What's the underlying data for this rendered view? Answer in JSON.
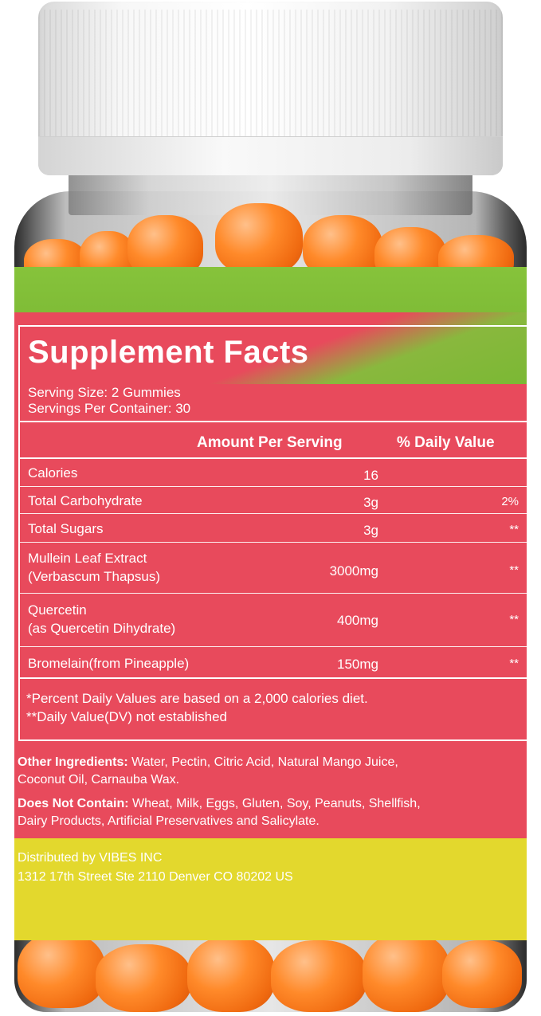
{
  "facts": {
    "title": "Supplement Facts",
    "serving_size": "Serving Size: 2 Gummies",
    "servings_per_container": "Servings Per Container: 30",
    "header_amount": "Amount Per Serving",
    "header_dv": "% Daily Value",
    "rows": [
      {
        "name": "Calories",
        "sub": "",
        "amount": "16",
        "dv": ""
      },
      {
        "name": "Total Carbohydrate",
        "sub": "",
        "amount": "3g",
        "dv": "2%"
      },
      {
        "name": "Total Sugars",
        "sub": "",
        "amount": "3g",
        "dv": "**"
      },
      {
        "name": "Mullein Leaf Extract",
        "sub": "(Verbascum Thapsus)",
        "amount": "3000mg",
        "dv": "**"
      },
      {
        "name": "Quercetin",
        "sub": "(as Quercetin Dihydrate)",
        "amount": "400mg",
        "dv": "**"
      },
      {
        "name": "Bromelain(from Pineapple)",
        "sub": "",
        "amount": "150mg",
        "dv": "**"
      }
    ],
    "footnote_1": "*Percent Daily Values are based on a 2,000 calories diet.",
    "footnote_2": "**Daily Value(DV) not established"
  },
  "ingredients": {
    "other_label": "Other Ingredients:",
    "other_text_1": " Water, Pectin, Citric Acid, Natural Mango Juice,",
    "other_text_2": "Coconut Oil, Carnauba Wax.",
    "not_contain_label": "Does Not Contain:",
    "not_contain_text_1": " Wheat, Milk, Eggs, Gluten, Soy, Peanuts, Shellfish,",
    "not_contain_text_2": "Dairy Products, Artificial Preservatives and Salicylate."
  },
  "distributor": {
    "line1": "Distributed by VIBES INC",
    "line2": "1312 17th Street Ste 2110 Denver CO 80202 US"
  },
  "colors": {
    "label_red": "#e84a5c",
    "label_green": "#7bb834",
    "label_yellow": "#e3d82d",
    "gummy_orange": "#ff8a2a"
  }
}
